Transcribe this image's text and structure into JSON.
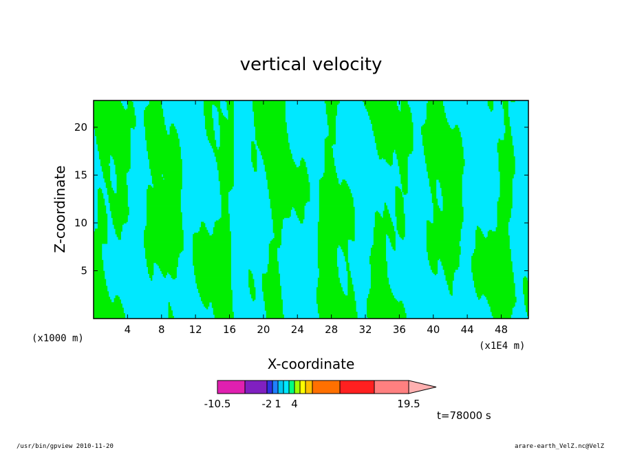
{
  "chart_data": {
    "type": "heatmap",
    "title": "vertical velocity",
    "xlabel": "X-coordinate",
    "ylabel": "Z-coordinate",
    "x_unit_label": "(x1000 m)",
    "x_scale_label": "(x1E4 m)",
    "xlim": [
      0,
      51.2
    ],
    "ylim": [
      0,
      22.8
    ],
    "x_ticks": [
      4,
      8,
      12,
      16,
      20,
      24,
      28,
      32,
      36,
      40,
      44,
      48
    ],
    "y_ticks": [
      5,
      10,
      15,
      20
    ],
    "colorbar": {
      "levels": [
        "-10.5",
        "-2",
        "1",
        "4",
        "19.5"
      ],
      "colors": [
        "#e020b0",
        "#8020c0",
        "#3030e0",
        "#2080ff",
        "#00c8f0",
        "#00e8ff",
        "#00ff80",
        "#a0ff00",
        "#ffff00",
        "#ffc000",
        "#ff7000",
        "#ff2020",
        "#ff8080",
        "#ffb0b0"
      ],
      "low_color": "#00e8ff",
      "high_color": "#00ee00"
    },
    "time_label": "t=78000 s",
    "grid": false,
    "legend": "colorbar-bottom"
  },
  "footer": {
    "left": "/usr/bin/gpview  2010-11-20",
    "right": "arare-earth_VelZ.nc@VelZ"
  },
  "colors": {
    "cyan": "#00e8ff",
    "green": "#00ee00",
    "frame": "#000000"
  }
}
